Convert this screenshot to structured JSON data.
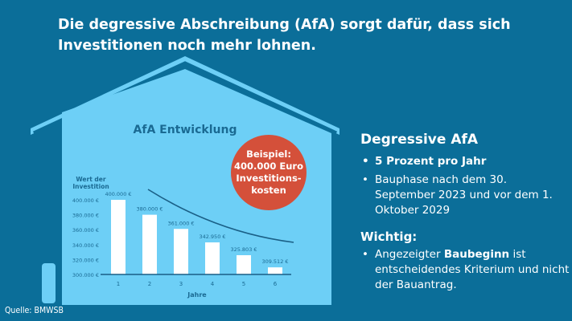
{
  "headline": "Die degressive Abschreibung (AfA) sorgt dafür, dass sich Investitionen noch mehr lohnen.",
  "source": "Quelle: BMWSB",
  "badge": {
    "line1": "Beispiel:",
    "line2": "400.000 Euro",
    "line3": "Investitions-",
    "line4": "kosten"
  },
  "info": {
    "heading": "Degressive AfA",
    "bullets": [
      "5 Prozent pro Jahr",
      "Bauphase nach dem 30. September 2023 und vor dem 1. Oktober 2029"
    ],
    "important_heading": "Wichtig:",
    "important_pre": "Angezeigter ",
    "important_bold": "Baubeginn",
    "important_post": " ist entscheidendes Kriterium und nicht der Bauantrag."
  },
  "colors": {
    "background": "#0b6e99",
    "house": "#6dcff6",
    "bar": "#ffffff",
    "badge": "#d4503a",
    "text_dark": "#1a6a93"
  },
  "chart_data": {
    "type": "bar",
    "title": "AfA Entwicklung",
    "ylabel": "Wert der Investition",
    "xlabel": "Jahre",
    "categories": [
      "1",
      "2",
      "3",
      "4",
      "5",
      "6"
    ],
    "values": [
      400000,
      380000,
      361000,
      342950,
      325803,
      309512
    ],
    "data_labels": [
      "400.000 €",
      "380.000 €",
      "361.000 €",
      "342.950 €",
      "325.803 €",
      "309.512 €"
    ],
    "yticks": [
      300000,
      320000,
      340000,
      360000,
      380000,
      400000
    ],
    "ytick_labels": [
      "300.000 €",
      "320.000 €",
      "340.000 €",
      "360.000 €",
      "380.000 €",
      "400.000 €"
    ],
    "ylim": [
      300000,
      400000
    ],
    "grid": false,
    "trend_curve": "decreasing"
  }
}
